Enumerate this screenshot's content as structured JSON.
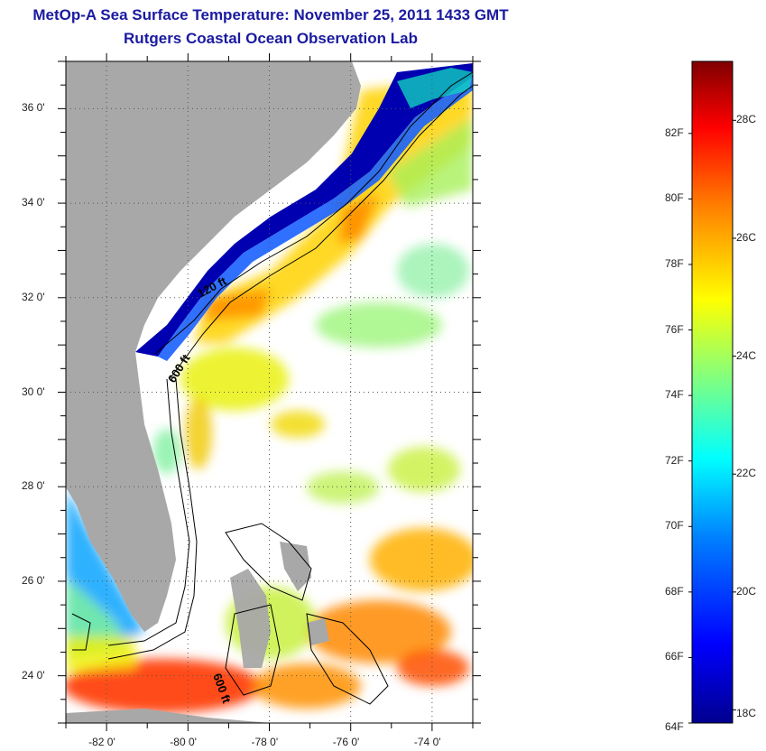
{
  "title_line1": "MetOp-A Sea Surface Temperature:  November 25, 2011 1433 GMT",
  "title_line2": "Rutgers Coastal Ocean Observation Lab",
  "map": {
    "lat_ticks": [
      "36 0'",
      "34 0'",
      "32 0'",
      "30 0'",
      "28 0'",
      "26 0'",
      "24 0'"
    ],
    "lon_ticks": [
      "-82 0'",
      "-80 0'",
      "-78 0'",
      "-76 0'",
      "-74 0'"
    ],
    "lat_values": [
      36,
      34,
      32,
      30,
      28,
      26,
      24
    ],
    "lon_values": [
      -82,
      -80,
      -78,
      -76,
      -74
    ],
    "lat_range": [
      23,
      37
    ],
    "lon_range": [
      -83,
      -73
    ],
    "contour_labels": [
      "120 ft",
      "600 ft",
      "600 ft"
    ],
    "colors": {
      "land": "#a8a8a8",
      "ocean_nodata": "#ffffff"
    }
  },
  "colorbar": {
    "fahrenheit_labels": [
      "82F",
      "80F",
      "78F",
      "76F",
      "74F",
      "72F",
      "70F",
      "68F",
      "66F",
      "64F"
    ],
    "celsius_labels": [
      "28C",
      "26C",
      "24C",
      "22C",
      "20C",
      "18C"
    ],
    "f_values": [
      82,
      80,
      78,
      76,
      74,
      72,
      70,
      68,
      66,
      64
    ],
    "c_values": [
      28,
      26,
      24,
      22,
      20,
      18
    ],
    "range_f": [
      64,
      84.2
    ],
    "colormap": [
      "#00008f",
      "#0000ff",
      "#0080ff",
      "#00ffff",
      "#80ff80",
      "#ffff00",
      "#ff8000",
      "#ff0000",
      "#800000"
    ]
  }
}
